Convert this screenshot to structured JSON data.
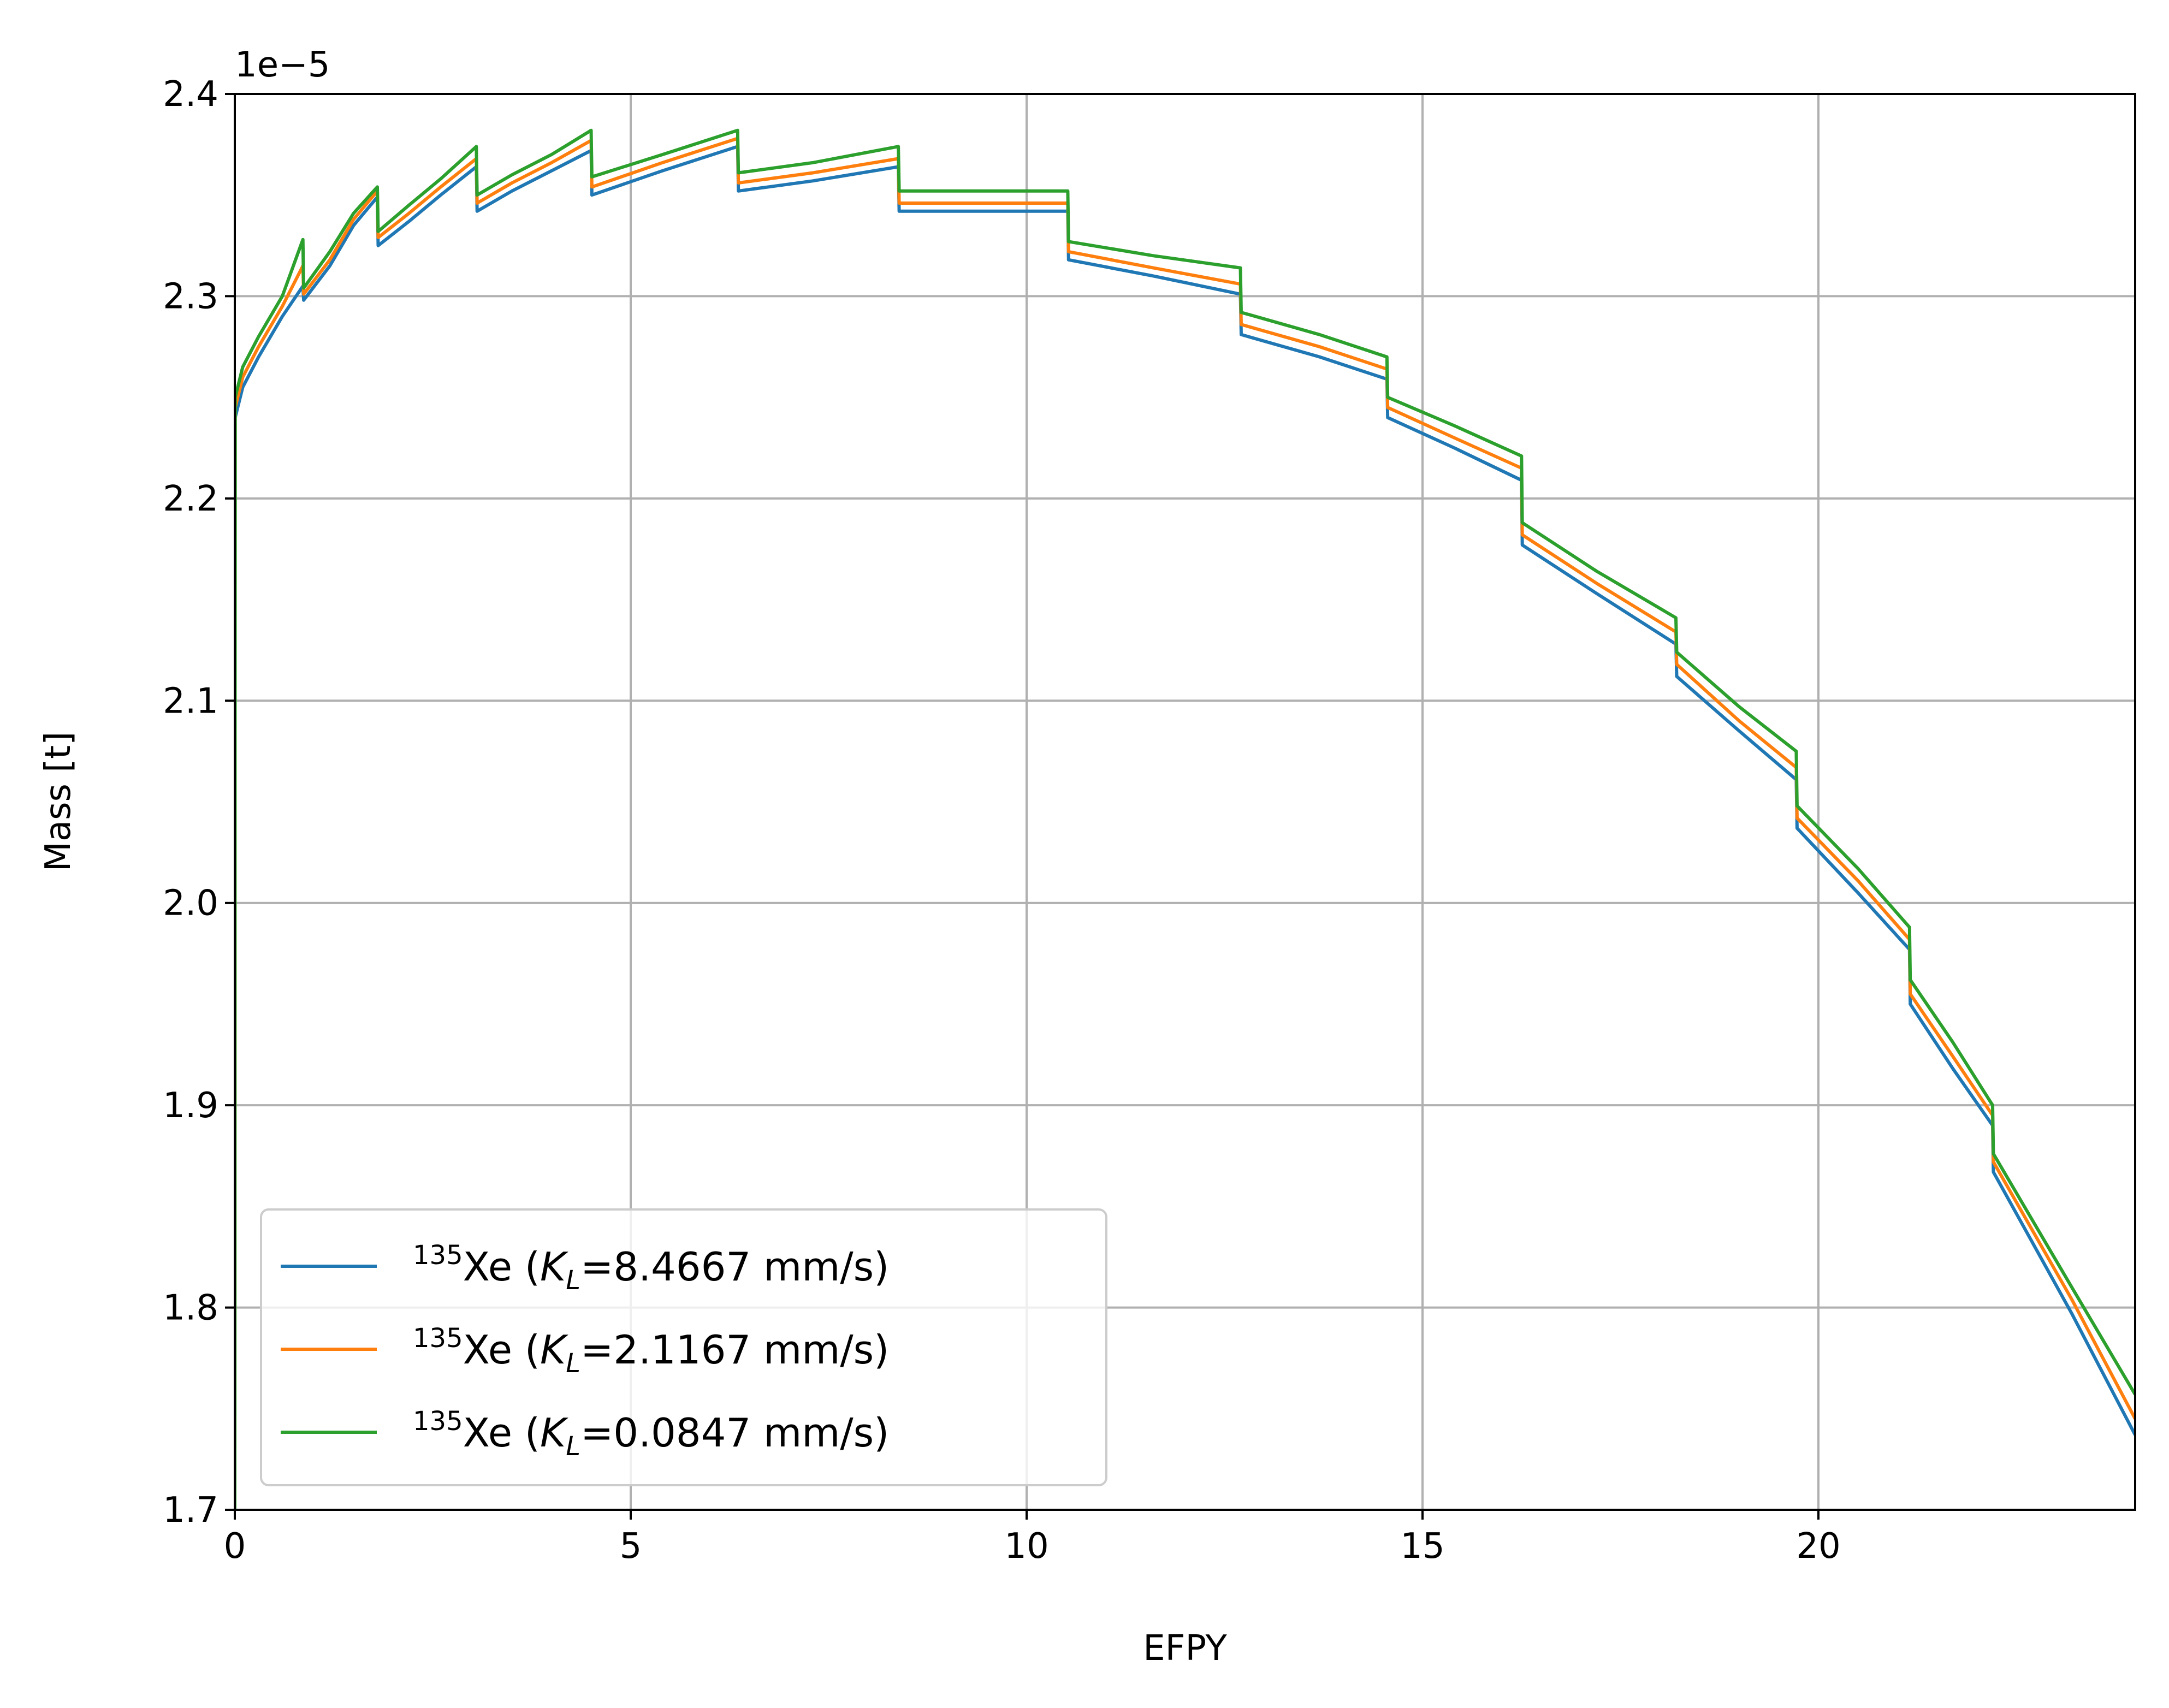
{
  "colors": {
    "blue": "#1f77b4",
    "orange": "#ff7f0e",
    "green": "#2ca02c",
    "grid": "#b0b0b0"
  },
  "chart_data": {
    "type": "line",
    "xlabel": "EFPY",
    "ylabel": "Mass [t]",
    "offset_text": "1e−5",
    "xlim": [
      0,
      24
    ],
    "ylim": [
      1.7,
      2.4
    ],
    "y_scale_factor": 1e-05,
    "grid": true,
    "legend_position": "lower-left",
    "xticks": [
      0,
      5,
      10,
      15,
      20
    ],
    "xtick_labels": [
      "0",
      "5",
      "10",
      "15",
      "20"
    ],
    "yticks": [
      1.7,
      1.8,
      1.9,
      2.0,
      2.1,
      2.2,
      2.3,
      2.4
    ],
    "ytick_labels": [
      "1.7",
      "1.8",
      "1.9",
      "2.0",
      "2.1",
      "2.2",
      "2.3",
      "2.4"
    ],
    "series": [
      {
        "name": "135Xe (KL=8.4667 mm/s)",
        "legend_parts": {
          "sup": "135",
          "prefix": "Xe (",
          "k": "K",
          "sub": "L",
          "suffix": "=8.4667 mm/s)"
        },
        "color": "#1f77b4",
        "x": [
          0,
          0.005,
          0.1,
          0.3,
          0.6,
          0.86,
          0.87,
          1.2,
          1.5,
          1.8,
          1.81,
          2.2,
          2.6,
          3.05,
          3.06,
          3.5,
          4.0,
          4.5,
          4.51,
          5.4,
          6.35,
          6.36,
          7.3,
          8.38,
          8.39,
          9.5,
          10.52,
          10.53,
          11.6,
          12.7,
          12.71,
          13.7,
          14.55,
          14.56,
          15.4,
          16.25,
          16.26,
          17.2,
          18.2,
          18.21,
          19.0,
          19.72,
          19.73,
          20.5,
          21.15,
          21.16,
          21.7,
          22.2,
          22.21,
          23.2,
          24.0
        ],
        "values": [
          1.7,
          2.24,
          2.255,
          2.27,
          2.29,
          2.305,
          2.298,
          2.315,
          2.335,
          2.349,
          2.325,
          2.337,
          2.35,
          2.364,
          2.342,
          2.352,
          2.362,
          2.372,
          2.35,
          2.362,
          2.374,
          2.352,
          2.357,
          2.364,
          2.342,
          2.342,
          2.342,
          2.318,
          2.31,
          2.301,
          2.281,
          2.27,
          2.259,
          2.24,
          2.225,
          2.209,
          2.177,
          2.153,
          2.128,
          2.112,
          2.085,
          2.061,
          2.037,
          2.005,
          1.977,
          1.95,
          1.918,
          1.89,
          1.867,
          1.797,
          1.737
        ]
      },
      {
        "name": "135Xe (KL=2.1167 mm/s)",
        "legend_parts": {
          "sup": "135",
          "prefix": "Xe (",
          "k": "K",
          "sub": "L",
          "suffix": "=2.1167 mm/s)"
        },
        "color": "#ff7f0e",
        "x": [
          0,
          0.005,
          0.1,
          0.3,
          0.6,
          0.86,
          0.87,
          1.2,
          1.5,
          1.8,
          1.81,
          2.2,
          2.6,
          3.05,
          3.06,
          3.5,
          4.0,
          4.5,
          4.51,
          5.4,
          6.35,
          6.36,
          7.3,
          8.38,
          8.39,
          9.5,
          10.52,
          10.53,
          11.6,
          12.7,
          12.71,
          13.7,
          14.55,
          14.56,
          15.4,
          16.25,
          16.26,
          17.2,
          18.2,
          18.21,
          19.0,
          19.72,
          19.73,
          20.5,
          21.15,
          21.16,
          21.7,
          22.2,
          22.21,
          23.2,
          24.0
        ],
        "values": [
          1.7,
          2.245,
          2.26,
          2.275,
          2.295,
          2.315,
          2.301,
          2.318,
          2.338,
          2.352,
          2.329,
          2.341,
          2.354,
          2.368,
          2.346,
          2.356,
          2.366,
          2.377,
          2.354,
          2.366,
          2.378,
          2.356,
          2.361,
          2.368,
          2.346,
          2.346,
          2.346,
          2.322,
          2.314,
          2.306,
          2.286,
          2.275,
          2.264,
          2.245,
          2.23,
          2.215,
          2.182,
          2.158,
          2.134,
          2.118,
          2.09,
          2.067,
          2.042,
          2.011,
          1.982,
          1.955,
          1.924,
          1.895,
          1.872,
          1.804,
          1.745
        ]
      },
      {
        "name": "135Xe (KL=0.0847 mm/s)",
        "legend_parts": {
          "sup": "135",
          "prefix": "Xe (",
          "k": "K",
          "sub": "L",
          "suffix": "=0.0847 mm/s)"
        },
        "color": "#2ca02c",
        "x": [
          0,
          0.005,
          0.1,
          0.3,
          0.6,
          0.86,
          0.87,
          1.2,
          1.5,
          1.8,
          1.81,
          2.2,
          2.6,
          3.05,
          3.06,
          3.5,
          4.0,
          4.5,
          4.51,
          5.4,
          6.35,
          6.36,
          7.3,
          8.38,
          8.39,
          9.5,
          10.52,
          10.53,
          11.6,
          12.7,
          12.71,
          13.7,
          14.55,
          14.56,
          15.4,
          16.25,
          16.26,
          17.2,
          18.2,
          18.21,
          19.0,
          19.72,
          19.73,
          20.5,
          21.15,
          21.16,
          21.7,
          22.2,
          22.21,
          23.2,
          24.0
        ],
        "values": [
          1.7,
          2.25,
          2.265,
          2.28,
          2.3,
          2.328,
          2.304,
          2.322,
          2.341,
          2.354,
          2.332,
          2.345,
          2.358,
          2.374,
          2.35,
          2.36,
          2.37,
          2.382,
          2.359,
          2.37,
          2.382,
          2.361,
          2.366,
          2.374,
          2.352,
          2.352,
          2.352,
          2.327,
          2.32,
          2.314,
          2.292,
          2.281,
          2.27,
          2.25,
          2.236,
          2.221,
          2.188,
          2.164,
          2.141,
          2.124,
          2.097,
          2.075,
          2.048,
          2.017,
          1.988,
          1.962,
          1.931,
          1.9,
          1.876,
          1.81,
          1.757
        ]
      }
    ]
  }
}
